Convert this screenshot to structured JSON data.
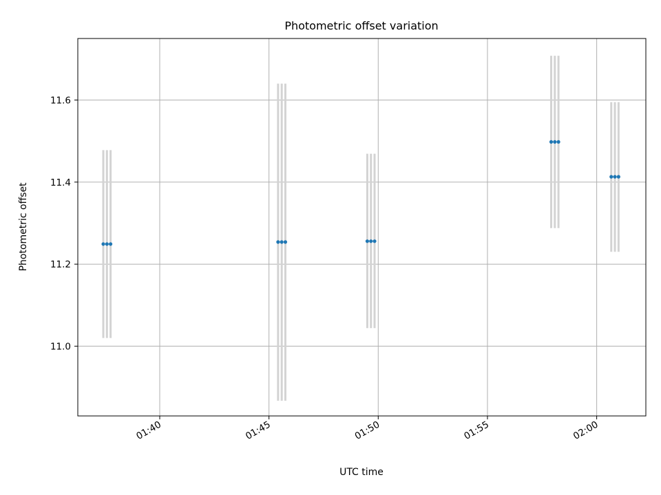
{
  "chart_data": {
    "type": "scatter",
    "title": "Photometric offset variation",
    "xlabel": "UTC time",
    "ylabel": "Photometric offset",
    "xlim": [
      "01:36:15",
      "02:02:15"
    ],
    "ylim": [
      10.83,
      11.75
    ],
    "x_ticks": [
      {
        "value": "01:40:00",
        "label": "01:40"
      },
      {
        "value": "01:45:00",
        "label": "01:45"
      },
      {
        "value": "01:50:00",
        "label": "01:50"
      },
      {
        "value": "01:55:00",
        "label": "01:55"
      },
      {
        "value": "02:00:00",
        "label": "02:00"
      }
    ],
    "y_ticks": [
      11.0,
      11.2,
      11.4,
      11.6
    ],
    "y_tick_labels": [
      "11.0",
      "11.2",
      "11.4",
      "11.6"
    ],
    "grid": true,
    "series": [
      {
        "marker_color": "#1f77b4",
        "errorbar_color": "#d3d3d3",
        "points": [
          {
            "x": "01:37:25",
            "y": 11.249,
            "yerr_low": 11.02,
            "yerr_high": 11.478
          },
          {
            "x": "01:37:35",
            "y": 11.249,
            "yerr_low": 11.02,
            "yerr_high": 11.478
          },
          {
            "x": "01:37:45",
            "y": 11.249,
            "yerr_low": 11.02,
            "yerr_high": 11.478
          },
          {
            "x": "01:45:25",
            "y": 11.254,
            "yerr_low": 10.867,
            "yerr_high": 11.64
          },
          {
            "x": "01:45:35",
            "y": 11.254,
            "yerr_low": 10.867,
            "yerr_high": 11.64
          },
          {
            "x": "01:45:45",
            "y": 11.254,
            "yerr_low": 10.867,
            "yerr_high": 11.64
          },
          {
            "x": "01:49:30",
            "y": 11.256,
            "yerr_low": 11.044,
            "yerr_high": 11.469
          },
          {
            "x": "01:49:40",
            "y": 11.256,
            "yerr_low": 11.044,
            "yerr_high": 11.469
          },
          {
            "x": "01:49:50",
            "y": 11.256,
            "yerr_low": 11.044,
            "yerr_high": 11.469
          },
          {
            "x": "01:57:55",
            "y": 11.498,
            "yerr_low": 11.288,
            "yerr_high": 11.708
          },
          {
            "x": "01:58:05",
            "y": 11.498,
            "yerr_low": 11.288,
            "yerr_high": 11.708
          },
          {
            "x": "01:58:15",
            "y": 11.498,
            "yerr_low": 11.288,
            "yerr_high": 11.708
          },
          {
            "x": "02:00:40",
            "y": 11.413,
            "yerr_low": 11.23,
            "yerr_high": 11.595
          },
          {
            "x": "02:00:50",
            "y": 11.413,
            "yerr_low": 11.23,
            "yerr_high": 11.595
          },
          {
            "x": "02:01:00",
            "y": 11.413,
            "yerr_low": 11.23,
            "yerr_high": 11.595
          }
        ]
      }
    ]
  }
}
